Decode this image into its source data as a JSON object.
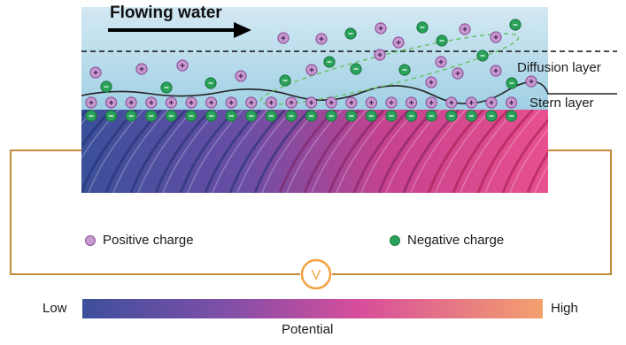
{
  "title": "Flowing water",
  "layers": {
    "diffusion": "Diffusion layer",
    "stern": "Stern layer"
  },
  "legend": {
    "positive": "Positive charge",
    "negative": "Negative charge"
  },
  "meter": {
    "symbol": "V",
    "icon": "voltmeter-icon"
  },
  "scale": {
    "low": "Low",
    "high": "High",
    "title": "Potential",
    "colors": [
      "#3d4f9c",
      "#7d4fa8",
      "#d74d9c",
      "#f08a6a",
      "#f4a06e"
    ]
  },
  "colors": {
    "water_top": "#c9e3f0",
    "water_bottom": "#a3d3e6",
    "positive_fill": "#c79bcf",
    "positive_stroke": "#8e4f9d",
    "negative_fill": "#2aa35a",
    "wire": "#c48a3a",
    "meter_ring": "#f2a341"
  }
}
